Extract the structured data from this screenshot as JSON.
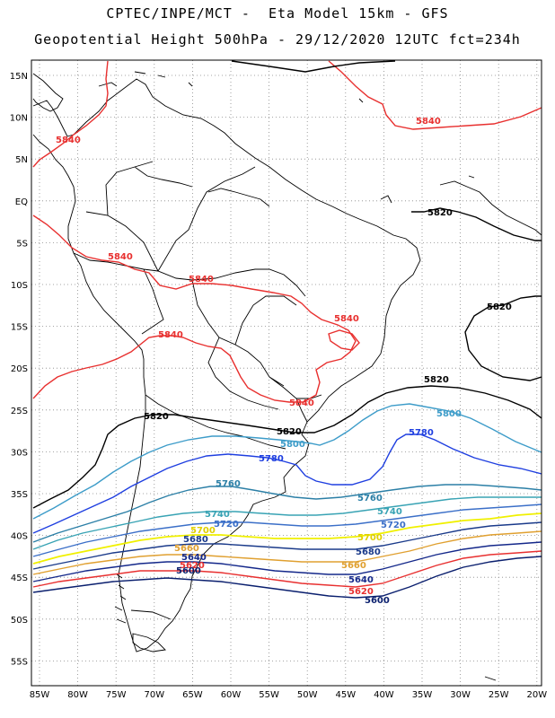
{
  "header": {
    "line1": "CPTEC/INPE/MCT -  Eta Model 15km - GFS",
    "line2": "Geopotential Height 500hPa - 29/12/2020 12UTC fct=234h"
  },
  "map_frame": {
    "lat_labels": [
      "15N",
      "10N",
      "5N",
      "EQ",
      "5S",
      "10S",
      "15S",
      "20S",
      "25S",
      "30S",
      "35S",
      "40S",
      "45S",
      "50S",
      "55S"
    ],
    "lon_labels": [
      "85W",
      "80W",
      "75W",
      "70W",
      "65W",
      "60W",
      "55W",
      "50W",
      "45W",
      "40W",
      "35W",
      "30W",
      "25W",
      "20W"
    ]
  },
  "contours": {
    "levels": [
      {
        "value": "5840",
        "color": "#e8302f"
      },
      {
        "value": "5820",
        "color": "#000000"
      },
      {
        "value": "5800",
        "color": "#3d9cc9"
      },
      {
        "value": "5780",
        "color": "#1f3fe0"
      },
      {
        "value": "5760",
        "color": "#2b7fa6"
      },
      {
        "value": "5740",
        "color": "#38a3b4"
      },
      {
        "value": "5720",
        "color": "#3b6fc8"
      },
      {
        "value": "5700",
        "color": "#f0f000"
      },
      {
        "value": "5680",
        "color": "#1a3a8a"
      },
      {
        "value": "5660",
        "color": "#e0a030"
      },
      {
        "value": "5640",
        "color": "#14288a"
      },
      {
        "value": "5620",
        "color": "#e83030"
      },
      {
        "value": "5600",
        "color": "#0a1f6e"
      }
    ]
  },
  "labels": {
    "l5840a": "5840",
    "l5840b": "5840",
    "l5840c": "5840",
    "l5840d": "5840",
    "l5840e": "5840",
    "l5840f": "5840",
    "l5840g": "5840",
    "l5820a": "5820",
    "l5820b": "5820",
    "l5820c": "5820",
    "l5820d": "5820",
    "l5820e": "5820",
    "l5800a": "5800",
    "l5800b": "5800",
    "l5780a": "5780",
    "l5780b": "5780",
    "l5760a": "5760",
    "l5760b": "5760",
    "l5740a": "5740",
    "l5740b": "5740",
    "l5720a": "5720",
    "l5720b": "5720",
    "l5700a": "5700",
    "l5700b": "5700",
    "l5680a": "5680",
    "l5680b": "5680",
    "l5660a": "5660",
    "l5660b": "5660",
    "l5640a": "5640",
    "l5640b": "5640",
    "l5620a": "5620",
    "l5620b": "5620",
    "l5600a": "5600",
    "l5600b": "5600"
  }
}
